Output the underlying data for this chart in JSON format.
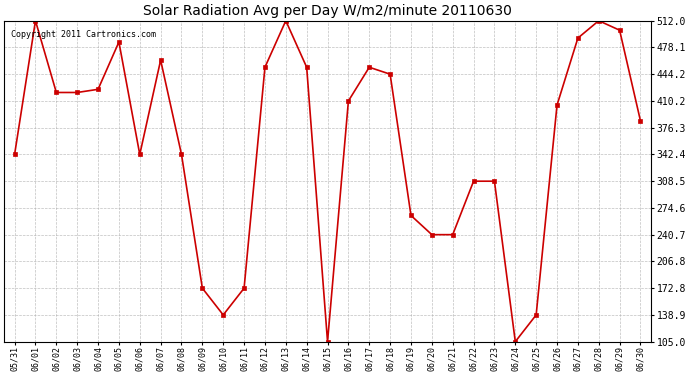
{
  "title": "Solar Radiation Avg per Day W/m2/minute 20110630",
  "copyright_text": "Copyright 2011 Cartronics.com",
  "dates": [
    "05/31",
    "06/01",
    "06/02",
    "06/03",
    "06/04",
    "06/05",
    "06/06",
    "06/07",
    "06/08",
    "06/09",
    "06/10",
    "06/11",
    "06/12",
    "06/13",
    "06/14",
    "06/15",
    "06/16",
    "06/17",
    "06/18",
    "06/19",
    "06/20",
    "06/21",
    "06/22",
    "06/23",
    "06/24",
    "06/25",
    "06/26",
    "06/27",
    "06/28",
    "06/29",
    "06/30"
  ],
  "values": [
    342.4,
    512.0,
    421.0,
    421.0,
    425.0,
    485.0,
    342.4,
    462.0,
    342.4,
    172.8,
    138.9,
    172.8,
    453.0,
    512.0,
    453.0,
    105.0,
    410.2,
    453.0,
    444.2,
    265.0,
    240.7,
    240.7,
    308.5,
    308.5,
    105.0,
    138.9,
    405.0,
    490.0,
    512.0,
    500.0,
    385.0
  ],
  "line_color": "#cc0000",
  "marker": "s",
  "marker_size": 3,
  "bg_color": "#ffffff",
  "plot_bg_color": "#ffffff",
  "grid_color": "#b0b0b0",
  "ylim_min": 105.0,
  "ylim_max": 512.0,
  "yticks": [
    105.0,
    138.9,
    172.8,
    206.8,
    240.7,
    274.6,
    308.5,
    342.4,
    376.3,
    410.2,
    444.2,
    478.1,
    512.0
  ],
  "figwidth": 6.9,
  "figheight": 3.75,
  "dpi": 100
}
